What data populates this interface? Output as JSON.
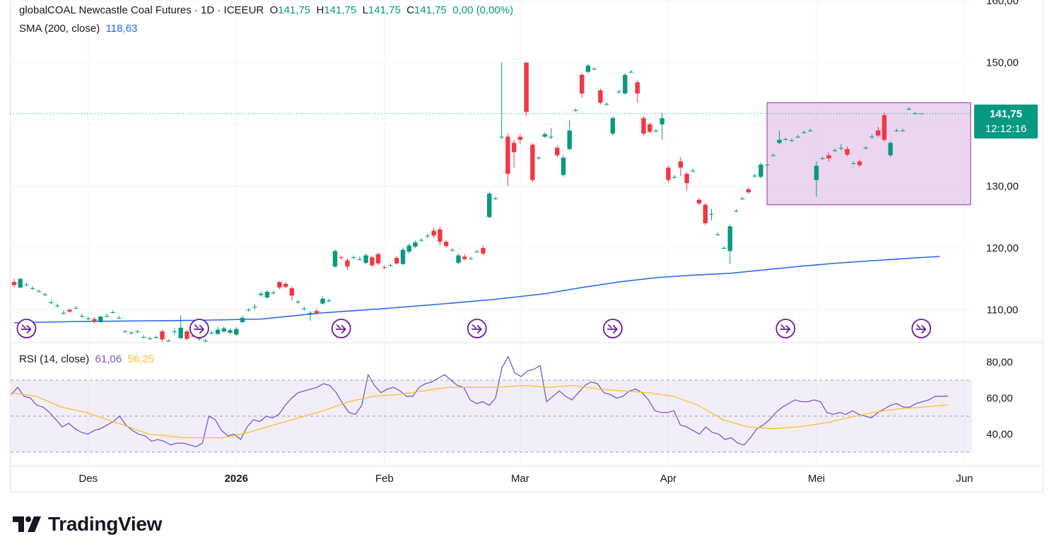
{
  "legend": {
    "symbol": "globalCOAL Newcastle Coal Futures · 1D · ICEEUR",
    "open_label": "O",
    "open": "141,75",
    "high_label": "H",
    "high": "141,75",
    "low_label": "L",
    "low": "141,75",
    "close_label": "C",
    "close": "141,75",
    "change": "0,00 (0,00%)",
    "sma_label": "SMA (200, close)",
    "sma_value": "118,63",
    "rsi_label": "RSI (14, close)",
    "rsi_value": "61,06",
    "rsi_ma_value": "56,25"
  },
  "price_tag": {
    "price": "141,75",
    "countdown": "12:12:16"
  },
  "brand": {
    "name": "TradingView"
  },
  "colors": {
    "up": "#089981",
    "down": "#f23645",
    "sma": "#2962ff",
    "rsi": "#7e57c2",
    "rsi_ma": "#fbc02d",
    "highlight": "#e1bee7"
  },
  "chart_data": {
    "type": "candlestick",
    "price_axis": {
      "ticks": [
        110,
        120,
        130,
        140,
        150,
        160
      ],
      "tick_labels": [
        "110,00",
        "120,00",
        "130,00",
        "",
        "150,00",
        "160,00"
      ],
      "range": [
        105,
        161
      ]
    },
    "rsi_axis": {
      "ticks": [
        40,
        60,
        80
      ],
      "tick_labels": [
        "40,00",
        "60,00",
        "80,00"
      ],
      "bands": [
        30,
        50,
        70
      ],
      "range": [
        24,
        84
      ]
    },
    "time_axis": {
      "labels": [
        "Des",
        "2026",
        "Feb",
        "Mar",
        "Apr",
        "Mei",
        "Jun"
      ],
      "label_index": [
        12,
        36,
        60,
        82,
        106,
        130,
        154
      ]
    },
    "highlight_rect": {
      "x_index": [
        122,
        155
      ],
      "price": [
        127,
        143.5
      ]
    },
    "last_price": 141.75,
    "candles": [
      [
        114.5,
        114.0,
        115.0,
        113.6
      ],
      [
        113.6,
        115.0,
        115.2,
        113.5
      ],
      [
        114.0,
        114.1,
        114.3,
        113.8
      ],
      [
        113.5,
        113.5,
        113.8,
        113.2
      ],
      [
        113.0,
        113.0,
        113.3,
        112.8
      ],
      [
        112.5,
        112.5,
        112.8,
        112.2
      ],
      [
        111.2,
        111.2,
        111.6,
        110.9
      ],
      [
        110.6,
        110.7,
        111.0,
        110.3
      ],
      [
        109.5,
        109.5,
        109.9,
        109.2
      ],
      [
        110.0,
        109.7,
        110.2,
        109.5
      ],
      [
        110.3,
        110.3,
        110.6,
        110.1
      ],
      [
        109.0,
        109.0,
        109.3,
        108.7
      ],
      [
        108.6,
        108.6,
        108.9,
        108.3
      ],
      [
        108.5,
        108.2,
        108.8,
        107.8
      ],
      [
        108.0,
        108.9,
        109.0,
        107.9
      ],
      [
        109.0,
        109.0,
        109.4,
        108.8
      ],
      [
        109.6,
        109.6,
        109.9,
        109.4
      ],
      [
        108.7,
        108.7,
        109.0,
        108.5
      ],
      [
        106.5,
        106.5,
        106.8,
        106.3
      ],
      [
        106.3,
        106.3,
        106.5,
        106.0
      ],
      [
        106.5,
        106.5,
        106.7,
        106.2
      ],
      [
        105.6,
        105.6,
        105.9,
        105.4
      ],
      [
        105.4,
        105.4,
        105.6,
        105.1
      ],
      [
        105.6,
        105.6,
        105.8,
        105.3
      ],
      [
        106.5,
        105.2,
        106.8,
        104.8
      ],
      [
        105.0,
        105.0,
        105.3,
        104.8
      ],
      [
        106.4,
        106.5,
        107.0,
        106.0
      ],
      [
        105.4,
        107.1,
        109.1,
        105.3
      ],
      [
        106.5,
        105.3,
        106.7,
        105.1
      ],
      [
        105.8,
        105.7,
        106.0,
        105.5
      ],
      [
        105.4,
        105.4,
        105.6,
        105.0
      ],
      [
        105.0,
        105.0,
        105.3,
        104.7
      ],
      [
        106.3,
        106.3,
        106.6,
        106.0
      ],
      [
        106.1,
        106.8,
        107.3,
        105.9
      ],
      [
        106.5,
        107.0,
        107.3,
        106.3
      ],
      [
        106.3,
        106.7,
        107.0,
        106.1
      ],
      [
        106.0,
        106.9,
        107.2,
        105.8
      ],
      [
        108.0,
        108.7,
        109.0,
        107.8
      ],
      [
        110.0,
        110.0,
        110.3,
        109.7
      ],
      [
        110.5,
        110.5,
        110.9,
        110.0
      ],
      [
        112.4,
        112.6,
        112.9,
        112.1
      ],
      [
        112.0,
        112.9,
        113.2,
        111.8
      ],
      [
        112.8,
        112.8,
        113.1,
        112.5
      ],
      [
        114.5,
        113.6,
        114.6,
        113.3
      ],
      [
        114.2,
        113.7,
        114.5,
        113.5
      ],
      [
        113.5,
        112.3,
        113.8,
        111.5
      ],
      [
        111.3,
        111.3,
        111.6,
        111.0
      ],
      [
        110.2,
        110.2,
        110.5,
        109.9
      ],
      [
        109.2,
        109.5,
        109.8,
        108.2
      ],
      [
        109.8,
        109.5,
        110.2,
        109.2
      ],
      [
        111.0,
        111.8,
        112.1,
        110.8
      ],
      [
        111.5,
        111.5,
        111.8,
        111.2
      ],
      [
        117.0,
        119.5,
        119.8,
        116.8
      ],
      [
        118.5,
        118.4,
        118.8,
        118.1
      ],
      [
        118.0,
        117.0,
        118.3,
        116.4
      ],
      [
        118.5,
        118.5,
        118.8,
        118.2
      ],
      [
        118.2,
        118.2,
        118.6,
        118.0
      ],
      [
        117.6,
        118.8,
        119.1,
        117.4
      ],
      [
        118.5,
        117.2,
        118.8,
        116.9
      ],
      [
        119.0,
        117.5,
        119.3,
        117.2
      ],
      [
        116.9,
        116.8,
        117.2,
        116.5
      ],
      [
        117.2,
        117.2,
        117.5,
        117.0
      ],
      [
        118.4,
        117.5,
        118.7,
        117.3
      ],
      [
        117.4,
        119.7,
        120.0,
        117.2
      ],
      [
        119.4,
        120.4,
        120.7,
        119.1
      ],
      [
        120.2,
        120.9,
        121.2,
        120.0
      ],
      [
        121.3,
        121.3,
        121.6,
        121.0
      ],
      [
        122.0,
        122.0,
        122.3,
        121.6
      ],
      [
        122.8,
        122.0,
        123.3,
        121.6
      ],
      [
        123.0,
        121.0,
        123.5,
        120.4
      ],
      [
        121.0,
        120.3,
        121.3,
        120.0
      ],
      [
        119.7,
        119.7,
        120.0,
        119.4
      ],
      [
        117.6,
        118.8,
        119.1,
        117.4
      ],
      [
        118.6,
        118.2,
        119.0,
        118.0
      ],
      [
        118.3,
        118.3,
        118.6,
        118.1
      ],
      [
        119.4,
        119.4,
        119.7,
        119.2
      ],
      [
        120.0,
        119.1,
        120.3,
        118.8
      ],
      [
        125.0,
        128.8,
        129.1,
        124.8
      ],
      [
        128.0,
        128.0,
        128.3,
        127.8
      ],
      [
        138.0,
        138.0,
        150.0,
        137.6
      ],
      [
        138.0,
        132.0,
        138.5,
        130.0
      ],
      [
        137.0,
        135.5,
        137.5,
        133.0
      ],
      [
        138.0,
        137.5,
        138.5,
        136.8
      ],
      [
        150.0,
        142.0,
        150.0,
        141.3
      ],
      [
        136.7,
        131.0,
        137.0,
        130.6
      ],
      [
        134.6,
        134.6,
        134.9,
        134.3
      ],
      [
        138.0,
        138.4,
        138.7,
        137.8
      ],
      [
        138.0,
        138.0,
        139.4,
        137.6
      ],
      [
        136.2,
        135.0,
        136.6,
        134.7
      ],
      [
        131.8,
        134.6,
        135.0,
        131.5
      ],
      [
        136.0,
        139.0,
        140.7,
        135.8
      ],
      [
        142.3,
        142.3,
        142.6,
        142.0
      ],
      [
        148.0,
        145.0,
        148.3,
        144.3
      ],
      [
        148.5,
        149.5,
        149.8,
        148.2
      ],
      [
        149.0,
        149.0,
        149.2,
        148.8
      ],
      [
        145.5,
        143.5,
        145.8,
        143.2
      ],
      [
        143.3,
        143.3,
        143.6,
        143.0
      ],
      [
        138.5,
        141.0,
        141.3,
        138.2
      ],
      [
        145.3,
        145.3,
        145.6,
        145.0
      ],
      [
        145.0,
        148.0,
        148.3,
        144.8
      ],
      [
        148.5,
        148.5,
        148.8,
        148.3
      ],
      [
        146.8,
        145.0,
        147.1,
        143.5
      ],
      [
        141.0,
        138.5,
        141.3,
        138.2
      ],
      [
        140.0,
        138.8,
        140.3,
        138.5
      ],
      [
        139.0,
        139.0,
        139.3,
        138.7
      ],
      [
        140.0,
        141.0,
        141.8,
        137.5
      ],
      [
        133.0,
        131.0,
        133.3,
        130.6
      ],
      [
        131.5,
        131.5,
        131.8,
        131.2
      ],
      [
        134.0,
        133.0,
        134.7,
        131.7
      ],
      [
        132.0,
        130.5,
        132.3,
        129.3
      ],
      [
        132.5,
        132.5,
        132.8,
        132.2
      ],
      [
        127.8,
        127.2,
        128.1,
        126.9
      ],
      [
        127.0,
        124.0,
        127.3,
        123.7
      ],
      [
        125.5,
        125.5,
        126.3,
        124.5
      ],
      [
        122.2,
        122.2,
        122.5,
        122.0
      ],
      [
        120.0,
        120.0,
        120.3,
        119.8
      ],
      [
        119.5,
        123.5,
        123.8,
        117.5
      ],
      [
        126.0,
        126.0,
        126.3,
        125.8
      ],
      [
        128.0,
        128.0,
        128.3,
        127.8
      ],
      [
        129.5,
        129.0,
        129.8,
        128.8
      ],
      [
        131.7,
        131.7,
        132.0,
        131.4
      ],
      [
        131.5,
        133.5,
        133.8,
        131.3
      ],
      [
        133.5,
        133.5,
        133.8,
        133.3
      ],
      [
        135.0,
        135.0,
        135.3,
        134.8
      ],
      [
        137.0,
        137.5,
        139.0,
        136.8
      ],
      [
        137.6,
        137.6,
        137.9,
        137.4
      ],
      [
        137.4,
        137.4,
        137.7,
        137.2
      ],
      [
        138.0,
        138.0,
        138.3,
        137.8
      ],
      [
        138.7,
        138.7,
        139.0,
        138.5
      ],
      [
        139.0,
        139.0,
        139.3,
        138.8
      ],
      [
        131.0,
        133.3,
        134.0,
        128.3
      ],
      [
        134.5,
        134.5,
        134.8,
        134.3
      ],
      [
        135.0,
        134.5,
        135.4,
        134.0
      ],
      [
        135.8,
        135.8,
        136.1,
        135.5
      ],
      [
        136.2,
        136.2,
        136.8,
        135.8
      ],
      [
        136.0,
        135.1,
        136.4,
        134.8
      ],
      [
        133.7,
        133.7,
        134.0,
        133.5
      ],
      [
        134.0,
        133.4,
        134.3,
        133.1
      ],
      [
        136.2,
        136.2,
        136.5,
        136.0
      ],
      [
        138.0,
        138.0,
        138.4,
        137.7
      ],
      [
        139.0,
        138.2,
        139.6,
        137.9
      ],
      [
        141.5,
        137.5,
        141.9,
        137.2
      ],
      [
        135.0,
        137.0,
        137.3,
        134.7
      ],
      [
        139.0,
        139.0,
        139.3,
        138.8
      ],
      [
        139.0,
        139.0,
        139.3,
        138.8
      ],
      [
        142.5,
        142.5,
        142.8,
        142.3
      ],
      [
        141.8,
        141.8,
        142.0,
        141.6
      ],
      [
        141.75,
        141.75,
        141.75,
        141.75
      ]
    ],
    "sma200": [
      [
        0,
        107.9
      ],
      [
        10,
        108.1
      ],
      [
        20,
        108.2
      ],
      [
        30,
        108.3
      ],
      [
        40,
        108.5
      ],
      [
        50,
        109.5
      ],
      [
        60,
        110.2
      ],
      [
        70,
        111.0
      ],
      [
        78,
        111.7
      ],
      [
        86,
        112.6
      ],
      [
        92,
        113.6
      ],
      [
        98,
        114.5
      ],
      [
        104,
        115.2
      ],
      [
        110,
        115.6
      ],
      [
        116,
        115.9
      ],
      [
        122,
        116.5
      ],
      [
        128,
        117.1
      ],
      [
        134,
        117.6
      ],
      [
        140,
        118.0
      ],
      [
        146,
        118.4
      ],
      [
        150,
        118.63
      ]
    ],
    "rsi": [
      62,
      66,
      61,
      60,
      56,
      55,
      52,
      48,
      44,
      46,
      43,
      41,
      40,
      42,
      43,
      45,
      47,
      50,
      45,
      42,
      40,
      39,
      36,
      37,
      36,
      34,
      35,
      35,
      34,
      33,
      35,
      50,
      48,
      42,
      39,
      40,
      37,
      44,
      48,
      47,
      50,
      49,
      51,
      56,
      60,
      63,
      64,
      65,
      66,
      68,
      67,
      63,
      57,
      52,
      51,
      56,
      73,
      67,
      63,
      65,
      66,
      64,
      61,
      61,
      66,
      68,
      69,
      71,
      73,
      70,
      67,
      66,
      59,
      57,
      58,
      56,
      60,
      77,
      83,
      74,
      72,
      75,
      76,
      78,
      58,
      61,
      64,
      61,
      59,
      63,
      67,
      69,
      68,
      63,
      62,
      60,
      61,
      64,
      65,
      63,
      59,
      53,
      52,
      52,
      53,
      45,
      44,
      42,
      40,
      44,
      41,
      40,
      37,
      38,
      35,
      34,
      38,
      43,
      45,
      48,
      52,
      55,
      57,
      59,
      58,
      58,
      59,
      58,
      52,
      51,
      52,
      51,
      53,
      51,
      50,
      49,
      52,
      54,
      56,
      57,
      55,
      55,
      57,
      58,
      59,
      61,
      61,
      61.06
    ],
    "rsi_ma": [
      [
        0,
        63
      ],
      [
        4,
        61
      ],
      [
        8,
        55
      ],
      [
        12,
        52
      ],
      [
        18,
        45
      ],
      [
        22,
        40
      ],
      [
        28,
        38
      ],
      [
        34,
        38
      ],
      [
        38,
        41
      ],
      [
        44,
        47
      ],
      [
        50,
        53
      ],
      [
        54,
        58
      ],
      [
        58,
        61
      ],
      [
        62,
        62
      ],
      [
        66,
        64
      ],
      [
        70,
        66
      ],
      [
        74,
        66
      ],
      [
        78,
        66
      ],
      [
        82,
        67
      ],
      [
        86,
        66
      ],
      [
        90,
        67
      ],
      [
        94,
        65
      ],
      [
        98,
        64
      ],
      [
        102,
        63
      ],
      [
        106,
        61
      ],
      [
        110,
        56
      ],
      [
        114,
        48
      ],
      [
        118,
        44
      ],
      [
        122,
        43
      ],
      [
        126,
        44
      ],
      [
        130,
        46
      ],
      [
        134,
        49
      ],
      [
        138,
        52
      ],
      [
        142,
        54
      ],
      [
        146,
        55
      ],
      [
        150,
        56.25
      ]
    ]
  }
}
